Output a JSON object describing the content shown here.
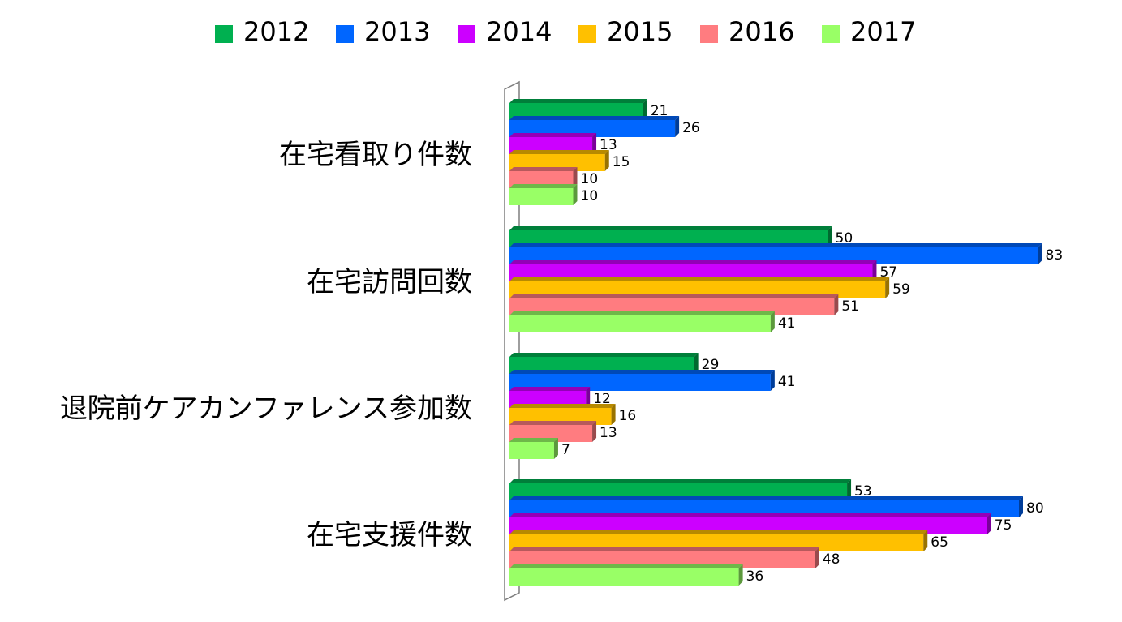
{
  "chart_data": {
    "type": "bar",
    "orientation": "horizontal",
    "title": "",
    "xlabel": "",
    "ylabel": "",
    "xlim": [
      0,
      85
    ],
    "grid": false,
    "legend_position": "top",
    "categories": [
      "在宅看取り件数",
      "在宅訪問回数",
      "退院前ケアカンファレンス参加数",
      "在宅支援件数"
    ],
    "series": [
      {
        "name": "2012",
        "color": "#00b050",
        "values": [
          21,
          50,
          29,
          53
        ]
      },
      {
        "name": "2013",
        "color": "#0066ff",
        "values": [
          26,
          83,
          41,
          80
        ]
      },
      {
        "name": "2014",
        "color": "#cc00ff",
        "values": [
          13,
          57,
          12,
          75
        ]
      },
      {
        "name": "2015",
        "color": "#ffc000",
        "values": [
          15,
          59,
          16,
          65
        ]
      },
      {
        "name": "2016",
        "color": "#ff7c80",
        "values": [
          10,
          51,
          13,
          48
        ]
      },
      {
        "name": "2017",
        "color": "#99ff66",
        "values": [
          10,
          41,
          7,
          36
        ]
      }
    ]
  }
}
